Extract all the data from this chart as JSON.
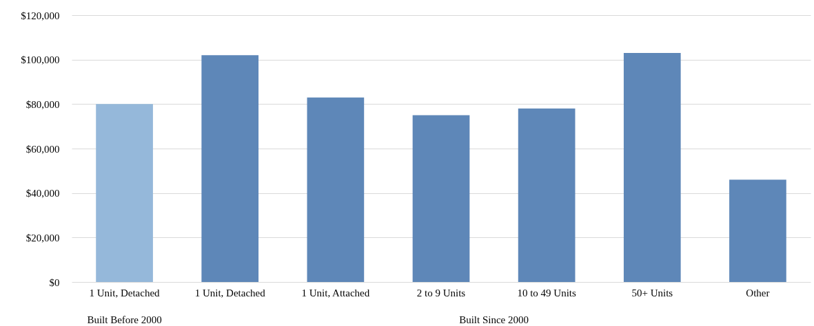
{
  "chart_data": {
    "type": "bar",
    "categories": [
      "1 Unit, Detached",
      "1 Unit, Detached",
      "1 Unit, Attached",
      "2 to 9 Units",
      "10 to 49 Units",
      "50+ Units",
      "Other"
    ],
    "values": [
      80000,
      102000,
      83000,
      75000,
      78000,
      103000,
      46000
    ],
    "colors": [
      "#95b8da",
      "#5e87b8",
      "#5e87b8",
      "#5e87b8",
      "#5e87b8",
      "#5e87b8",
      "#5e87b8"
    ],
    "ylim": [
      0,
      120000
    ],
    "yticks": [
      {
        "value": 0,
        "label": "$0"
      },
      {
        "value": 20000,
        "label": "$20,000"
      },
      {
        "value": 40000,
        "label": "$40,000"
      },
      {
        "value": 60000,
        "label": "$60,000"
      },
      {
        "value": 80000,
        "label": "$80,000"
      },
      {
        "value": 100000,
        "label": "$100,000"
      },
      {
        "value": 120000,
        "label": "$120,000"
      }
    ],
    "grid": "y",
    "annotations": [
      "Built Before 2000",
      "Built Since 2000"
    ]
  }
}
